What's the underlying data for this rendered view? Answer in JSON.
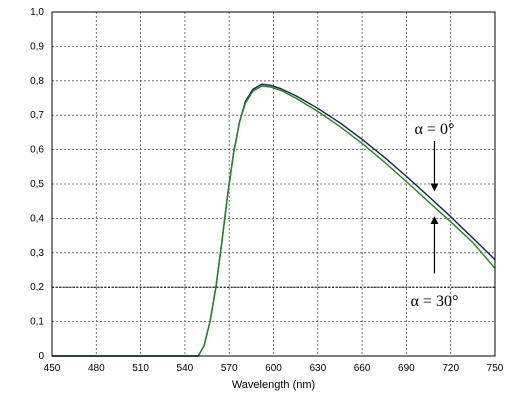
{
  "chart_data": {
    "type": "line",
    "xlabel": "Wavelength (nm)",
    "ylabel": "",
    "title": "",
    "xlim": [
      450,
      750
    ],
    "ylim": [
      0,
      1.0
    ],
    "xticks": [
      "450",
      "480",
      "510",
      "540",
      "570",
      "600",
      "630",
      "660",
      "690",
      "720",
      "750"
    ],
    "yticks": [
      "0",
      "0,1",
      "0,2",
      "0,3",
      "0,4",
      "0,5",
      "0,6",
      "0,7",
      "0,8",
      "0,9",
      "1,0"
    ],
    "grid": true,
    "threshold_y": 0.2,
    "series": [
      {
        "color": "#1a1a6b",
        "x": [
          450,
          540,
          549,
          553,
          557,
          561,
          565,
          569,
          573,
          577,
          581,
          586,
          592,
          598,
          605,
          615,
          630,
          645,
          660,
          675,
          690,
          705,
          720,
          735,
          750
        ],
        "y": [
          0,
          0,
          0,
          0.03,
          0.1,
          0.2,
          0.33,
          0.47,
          0.59,
          0.68,
          0.74,
          0.775,
          0.79,
          0.787,
          0.777,
          0.757,
          0.72,
          0.678,
          0.63,
          0.578,
          0.522,
          0.464,
          0.405,
          0.343,
          0.28
        ]
      },
      {
        "color": "#1a8a1a",
        "x": [
          450,
          540,
          549,
          553,
          557,
          561,
          565,
          569,
          573,
          577,
          581,
          586,
          592,
          598,
          605,
          615,
          630,
          645,
          660,
          675,
          690,
          705,
          720,
          735,
          750
        ],
        "y": [
          0,
          0,
          0,
          0.03,
          0.1,
          0.2,
          0.33,
          0.47,
          0.59,
          0.68,
          0.735,
          0.77,
          0.785,
          0.782,
          0.772,
          0.75,
          0.711,
          0.667,
          0.618,
          0.564,
          0.507,
          0.448,
          0.39,
          0.33,
          0.255
        ]
      }
    ],
    "annotations": [
      {
        "text": "α = 0°",
        "x": 709,
        "y": 0.66,
        "arrow_from": 0.625,
        "arrow_to": 0.49
      },
      {
        "text": "α = 30°",
        "x": 709,
        "y": 0.16,
        "arrow_from": 0.24,
        "arrow_to": 0.395
      }
    ]
  }
}
